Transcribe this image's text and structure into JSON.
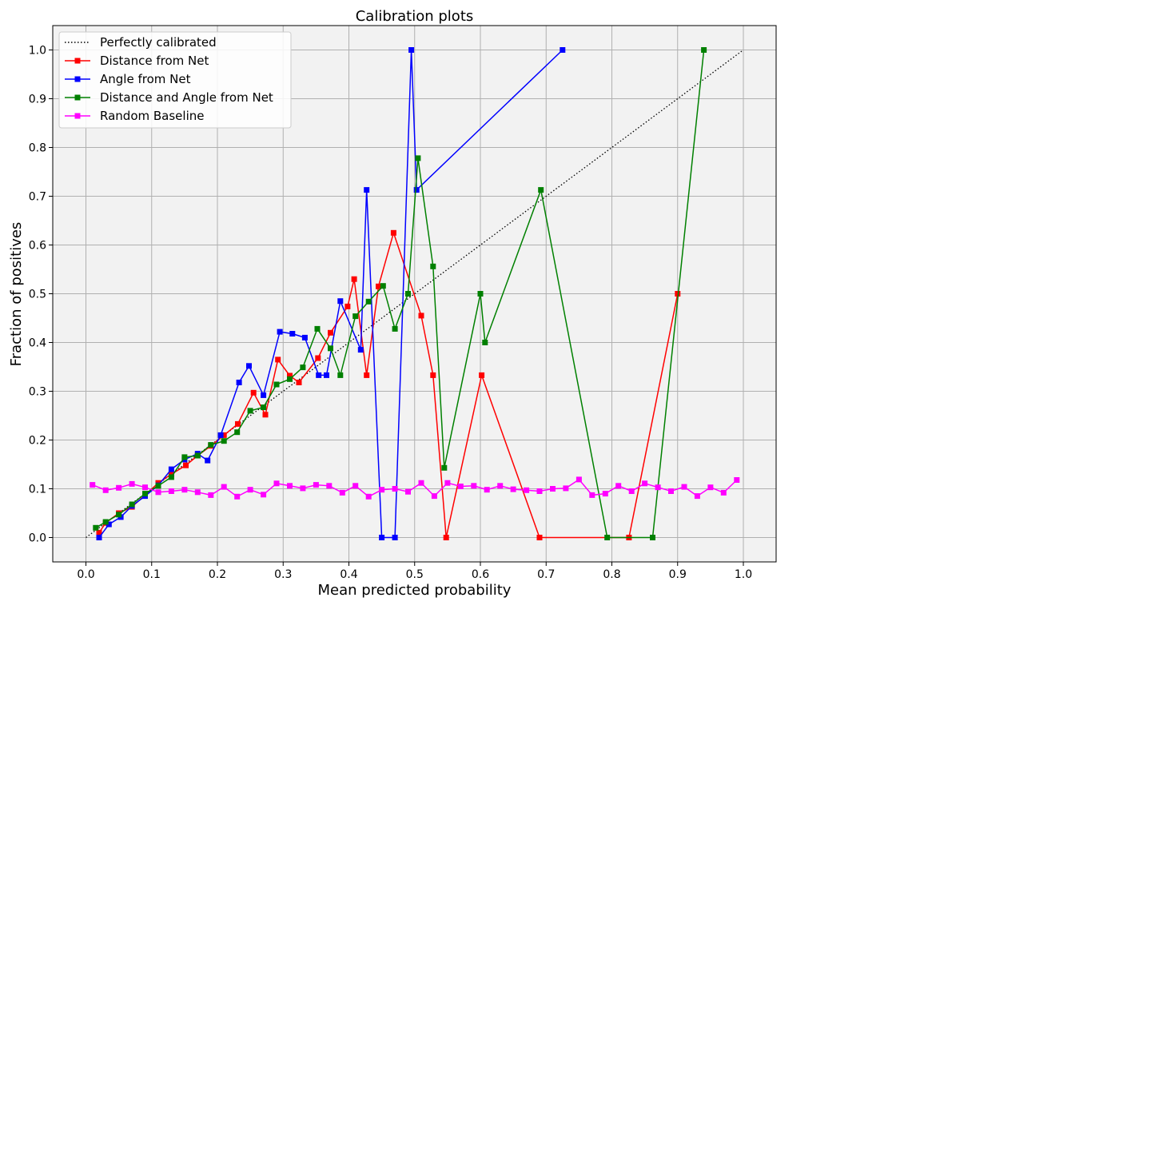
{
  "chart_data": {
    "type": "line",
    "title": "Calibration plots",
    "xlabel": "Mean predicted probability",
    "ylabel": "Fraction of positives",
    "xlim": [
      -0.05,
      1.05
    ],
    "ylim": [
      -0.05,
      1.05
    ],
    "xticks": [
      "0.0",
      "0.1",
      "0.2",
      "0.3",
      "0.4",
      "0.5",
      "0.6",
      "0.7",
      "0.8",
      "0.9",
      "1.0"
    ],
    "yticks": [
      "0.0",
      "0.1",
      "0.2",
      "0.3",
      "0.4",
      "0.5",
      "0.6",
      "0.7",
      "0.8",
      "0.9",
      "1.0"
    ],
    "grid": true,
    "legend_position": "top-left",
    "background": "#f2f2f2",
    "series": [
      {
        "name": "Perfectly calibrated",
        "color": "#000000",
        "style": "dotted",
        "marker": "none",
        "x": [
          0.0,
          1.0
        ],
        "y": [
          0.0,
          1.0
        ]
      },
      {
        "name": "Distance from Net",
        "color": "#ff0000",
        "style": "solid",
        "marker": "square",
        "x": [
          0.02,
          0.03,
          0.05,
          0.07,
          0.09,
          0.11,
          0.13,
          0.152,
          0.17,
          0.19,
          0.21,
          0.231,
          0.255,
          0.273,
          0.292,
          0.31,
          0.324,
          0.353,
          0.372,
          0.398,
          0.408,
          0.427,
          0.445,
          0.468,
          0.51,
          0.528,
          0.548,
          0.602,
          0.69,
          0.826,
          0.9
        ],
        "y": [
          0.01,
          0.03,
          0.05,
          0.063,
          0.087,
          0.112,
          0.13,
          0.148,
          0.168,
          0.188,
          0.21,
          0.233,
          0.297,
          0.252,
          0.365,
          0.332,
          0.318,
          0.368,
          0.42,
          0.474,
          0.53,
          0.333,
          0.515,
          0.625,
          0.455,
          0.333,
          0.0,
          0.333,
          0.0,
          0.0,
          0.5
        ]
      },
      {
        "name": "Angle from Net",
        "color": "#0000ff",
        "style": "solid",
        "marker": "square",
        "x": [
          0.02,
          0.035,
          0.053,
          0.07,
          0.09,
          0.11,
          0.13,
          0.15,
          0.17,
          0.185,
          0.205,
          0.233,
          0.248,
          0.27,
          0.295,
          0.314,
          0.333,
          0.354,
          0.366,
          0.387,
          0.418,
          0.427,
          0.45,
          0.47,
          0.495,
          0.503,
          0.725
        ],
        "y": [
          0.0,
          0.027,
          0.042,
          0.065,
          0.085,
          0.107,
          0.14,
          0.16,
          0.172,
          0.158,
          0.21,
          0.318,
          0.352,
          0.292,
          0.422,
          0.418,
          0.41,
          0.333,
          0.333,
          0.485,
          0.385,
          0.713,
          0.0,
          0.0,
          1.0,
          0.713,
          1.0
        ]
      },
      {
        "name": "Distance and Angle from Net",
        "color": "#008000",
        "style": "solid",
        "marker": "square",
        "x": [
          0.015,
          0.03,
          0.05,
          0.07,
          0.09,
          0.11,
          0.13,
          0.15,
          0.17,
          0.19,
          0.21,
          0.23,
          0.25,
          0.27,
          0.29,
          0.31,
          0.33,
          0.352,
          0.372,
          0.387,
          0.41,
          0.43,
          0.452,
          0.47,
          0.49,
          0.505,
          0.528,
          0.545,
          0.6,
          0.607,
          0.692,
          0.793,
          0.862,
          0.94
        ],
        "y": [
          0.02,
          0.032,
          0.047,
          0.068,
          0.09,
          0.106,
          0.124,
          0.165,
          0.168,
          0.19,
          0.198,
          0.216,
          0.26,
          0.267,
          0.314,
          0.325,
          0.349,
          0.428,
          0.388,
          0.333,
          0.454,
          0.484,
          0.516,
          0.428,
          0.5,
          0.778,
          0.556,
          0.143,
          0.5,
          0.4,
          0.713,
          0.0,
          0.0,
          1.0
        ]
      },
      {
        "name": "Random Baseline",
        "color": "#ff00ff",
        "style": "solid",
        "marker": "square",
        "x": [
          0.01,
          0.03,
          0.05,
          0.07,
          0.09,
          0.11,
          0.13,
          0.15,
          0.17,
          0.19,
          0.21,
          0.23,
          0.25,
          0.27,
          0.29,
          0.31,
          0.33,
          0.35,
          0.37,
          0.39,
          0.41,
          0.43,
          0.45,
          0.47,
          0.49,
          0.51,
          0.53,
          0.55,
          0.57,
          0.59,
          0.61,
          0.63,
          0.65,
          0.67,
          0.69,
          0.71,
          0.73,
          0.75,
          0.77,
          0.79,
          0.81,
          0.83,
          0.85,
          0.87,
          0.89,
          0.91,
          0.93,
          0.95,
          0.97,
          0.99
        ],
        "y": [
          0.108,
          0.097,
          0.102,
          0.11,
          0.103,
          0.093,
          0.095,
          0.098,
          0.093,
          0.087,
          0.104,
          0.084,
          0.098,
          0.088,
          0.111,
          0.106,
          0.101,
          0.108,
          0.106,
          0.092,
          0.106,
          0.084,
          0.098,
          0.1,
          0.094,
          0.112,
          0.085,
          0.112,
          0.105,
          0.106,
          0.098,
          0.106,
          0.099,
          0.097,
          0.095,
          0.1,
          0.101,
          0.119,
          0.087,
          0.09,
          0.106,
          0.095,
          0.111,
          0.103,
          0.095,
          0.104,
          0.085,
          0.103,
          0.092,
          0.118
        ]
      }
    ]
  }
}
